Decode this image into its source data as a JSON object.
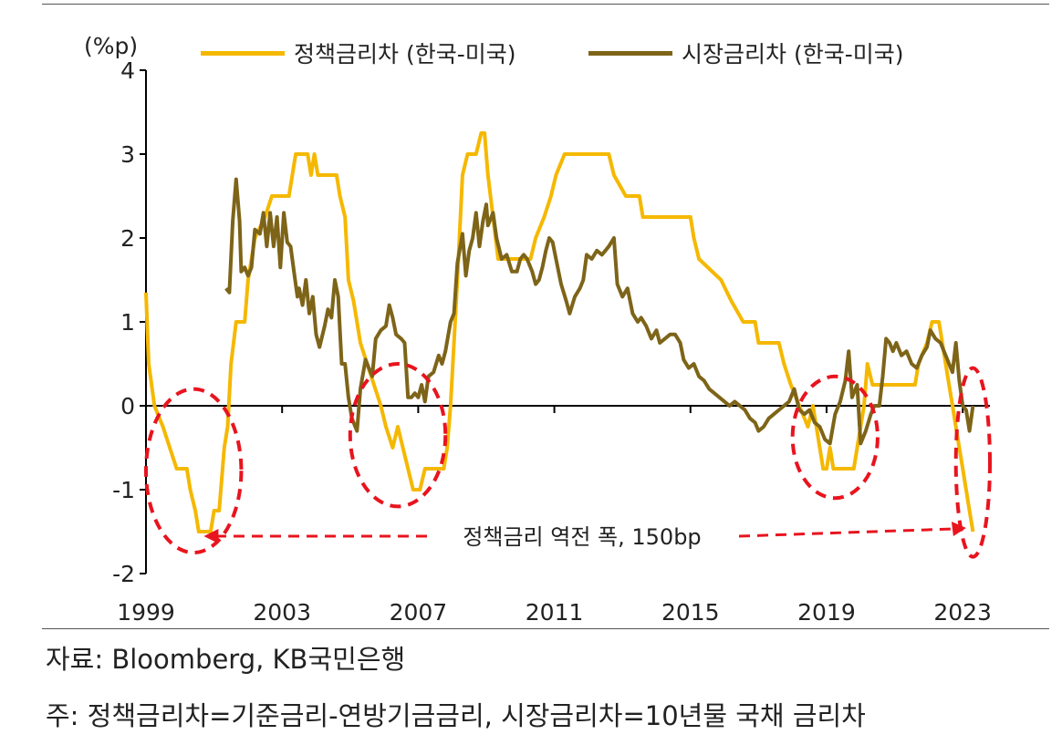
{
  "chart_data": {
    "type": "line",
    "unit_label": "(%p)",
    "colors": {
      "policy": "#f5b800",
      "market": "#7d6418",
      "annotation": "#e8141e"
    },
    "ylim": [
      -2,
      4
    ],
    "y_ticks": [
      "-2",
      "-1",
      "0",
      "1",
      "2",
      "3",
      "4"
    ],
    "xlim": [
      1999.0,
      2023.8
    ],
    "x_ticks": [
      "1999",
      "2003",
      "2007",
      "2011",
      "2015",
      "2019",
      "2023"
    ],
    "grid": false,
    "legend_position": "top",
    "series": [
      {
        "name": "정책금리차 (한국-미국)",
        "points": [
          [
            1999.0,
            1.35
          ],
          [
            1999.08,
            0.5
          ],
          [
            1999.25,
            0.0
          ],
          [
            1999.5,
            -0.25
          ],
          [
            1999.7,
            -0.5
          ],
          [
            1999.9,
            -0.75
          ],
          [
            2000.2,
            -0.75
          ],
          [
            2000.3,
            -1.0
          ],
          [
            2000.45,
            -1.25
          ],
          [
            2000.55,
            -1.5
          ],
          [
            2000.9,
            -1.5
          ],
          [
            2001.0,
            -1.25
          ],
          [
            2001.15,
            -1.25
          ],
          [
            2001.3,
            -0.5
          ],
          [
            2001.4,
            -0.25
          ],
          [
            2001.5,
            0.5
          ],
          [
            2001.65,
            1.0
          ],
          [
            2001.9,
            1.0
          ],
          [
            2002.0,
            1.5
          ],
          [
            2002.2,
            2.0
          ],
          [
            2002.5,
            2.25
          ],
          [
            2002.7,
            2.5
          ],
          [
            2003.2,
            2.5
          ],
          [
            2003.3,
            2.75
          ],
          [
            2003.4,
            3.0
          ],
          [
            2003.75,
            3.0
          ],
          [
            2003.85,
            2.75
          ],
          [
            2003.95,
            3.0
          ],
          [
            2004.05,
            2.75
          ],
          [
            2004.6,
            2.75
          ],
          [
            2004.7,
            2.5
          ],
          [
            2004.85,
            2.25
          ],
          [
            2004.95,
            1.5
          ],
          [
            2005.1,
            1.25
          ],
          [
            2005.3,
            0.75
          ],
          [
            2005.5,
            0.5
          ],
          [
            2005.7,
            0.25
          ],
          [
            2005.9,
            0.0
          ],
          [
            2006.05,
            -0.25
          ],
          [
            2006.25,
            -0.5
          ],
          [
            2006.4,
            -0.25
          ],
          [
            2006.55,
            -0.5
          ],
          [
            2006.7,
            -0.75
          ],
          [
            2006.85,
            -1.0
          ],
          [
            2007.05,
            -1.0
          ],
          [
            2007.2,
            -0.75
          ],
          [
            2007.75,
            -0.75
          ],
          [
            2007.85,
            -0.5
          ],
          [
            2007.95,
            0.0
          ],
          [
            2008.05,
            0.75
          ],
          [
            2008.15,
            1.5
          ],
          [
            2008.3,
            2.75
          ],
          [
            2008.45,
            3.0
          ],
          [
            2008.7,
            3.0
          ],
          [
            2008.85,
            3.25
          ],
          [
            2008.95,
            3.25
          ],
          [
            2009.05,
            2.75
          ],
          [
            2009.2,
            2.25
          ],
          [
            2009.35,
            1.75
          ],
          [
            2010.3,
            1.75
          ],
          [
            2010.45,
            2.0
          ],
          [
            2010.7,
            2.25
          ],
          [
            2010.9,
            2.5
          ],
          [
            2011.05,
            2.75
          ],
          [
            2011.3,
            3.0
          ],
          [
            2012.6,
            3.0
          ],
          [
            2012.75,
            2.75
          ],
          [
            2013.1,
            2.5
          ],
          [
            2013.5,
            2.5
          ],
          [
            2013.6,
            2.25
          ],
          [
            2015.0,
            2.25
          ],
          [
            2015.1,
            2.0
          ],
          [
            2015.25,
            1.75
          ],
          [
            2015.9,
            1.5
          ],
          [
            2016.2,
            1.25
          ],
          [
            2016.55,
            1.0
          ],
          [
            2016.9,
            1.0
          ],
          [
            2017.0,
            0.75
          ],
          [
            2017.6,
            0.75
          ],
          [
            2017.75,
            0.5
          ],
          [
            2017.95,
            0.25
          ],
          [
            2018.2,
            0.0
          ],
          [
            2018.45,
            -0.25
          ],
          [
            2018.6,
            0.0
          ],
          [
            2018.7,
            -0.25
          ],
          [
            2018.8,
            -0.5
          ],
          [
            2018.9,
            -0.75
          ],
          [
            2019.0,
            -0.75
          ],
          [
            2019.1,
            -0.5
          ],
          [
            2019.2,
            -0.75
          ],
          [
            2019.8,
            -0.75
          ],
          [
            2019.9,
            -0.5
          ],
          [
            2020.0,
            -0.25
          ],
          [
            2020.1,
            0.0
          ],
          [
            2020.2,
            0.5
          ],
          [
            2020.35,
            0.25
          ],
          [
            2021.6,
            0.25
          ],
          [
            2021.7,
            0.5
          ],
          [
            2021.95,
            0.75
          ],
          [
            2022.1,
            1.0
          ],
          [
            2022.3,
            1.0
          ],
          [
            2022.4,
            0.75
          ],
          [
            2022.5,
            0.5
          ],
          [
            2022.6,
            0.25
          ],
          [
            2022.7,
            0.0
          ],
          [
            2022.8,
            -0.25
          ],
          [
            2022.9,
            -0.5
          ],
          [
            2023.0,
            -0.75
          ],
          [
            2023.1,
            -1.0
          ],
          [
            2023.2,
            -1.25
          ],
          [
            2023.3,
            -1.5
          ]
        ]
      },
      {
        "name": "시장금리차 (한국-미국)",
        "points": [
          [
            2001.35,
            1.4
          ],
          [
            2001.45,
            1.35
          ],
          [
            2001.55,
            2.2
          ],
          [
            2001.65,
            2.7
          ],
          [
            2001.75,
            2.2
          ],
          [
            2001.8,
            1.6
          ],
          [
            2001.9,
            1.65
          ],
          [
            2002.0,
            1.55
          ],
          [
            2002.1,
            1.65
          ],
          [
            2002.2,
            2.1
          ],
          [
            2002.35,
            2.05
          ],
          [
            2002.45,
            2.3
          ],
          [
            2002.55,
            1.9
          ],
          [
            2002.65,
            2.3
          ],
          [
            2002.75,
            1.9
          ],
          [
            2002.85,
            2.25
          ],
          [
            2002.95,
            1.65
          ],
          [
            2003.05,
            2.3
          ],
          [
            2003.15,
            1.95
          ],
          [
            2003.25,
            1.9
          ],
          [
            2003.35,
            1.6
          ],
          [
            2003.45,
            1.3
          ],
          [
            2003.5,
            1.4
          ],
          [
            2003.6,
            1.2
          ],
          [
            2003.7,
            1.5
          ],
          [
            2003.8,
            1.1
          ],
          [
            2003.9,
            1.3
          ],
          [
            2004.0,
            0.85
          ],
          [
            2004.1,
            0.7
          ],
          [
            2004.25,
            0.95
          ],
          [
            2004.35,
            1.15
          ],
          [
            2004.45,
            1.05
          ],
          [
            2004.55,
            1.5
          ],
          [
            2004.65,
            1.3
          ],
          [
            2004.75,
            0.5
          ],
          [
            2004.85,
            0.5
          ],
          [
            2004.95,
            0.1
          ],
          [
            2005.05,
            -0.15
          ],
          [
            2005.2,
            -0.3
          ],
          [
            2005.3,
            0.2
          ],
          [
            2005.45,
            0.55
          ],
          [
            2005.55,
            0.45
          ],
          [
            2005.65,
            0.35
          ],
          [
            2005.75,
            0.8
          ],
          [
            2005.9,
            0.9
          ],
          [
            2006.05,
            0.95
          ],
          [
            2006.15,
            1.2
          ],
          [
            2006.25,
            1.05
          ],
          [
            2006.35,
            0.85
          ],
          [
            2006.5,
            0.8
          ],
          [
            2006.6,
            0.75
          ],
          [
            2006.7,
            0.1
          ],
          [
            2006.8,
            0.1
          ],
          [
            2006.9,
            0.15
          ],
          [
            2007.0,
            0.1
          ],
          [
            2007.1,
            0.25
          ],
          [
            2007.2,
            0.05
          ],
          [
            2007.3,
            0.35
          ],
          [
            2007.45,
            0.4
          ],
          [
            2007.6,
            0.6
          ],
          [
            2007.7,
            0.5
          ],
          [
            2007.8,
            0.65
          ],
          [
            2007.95,
            1.0
          ],
          [
            2008.05,
            1.1
          ],
          [
            2008.15,
            1.7
          ],
          [
            2008.3,
            2.05
          ],
          [
            2008.4,
            1.55
          ],
          [
            2008.5,
            1.85
          ],
          [
            2008.6,
            2.0
          ],
          [
            2008.7,
            2.3
          ],
          [
            2008.8,
            1.9
          ],
          [
            2008.9,
            2.2
          ],
          [
            2009.0,
            2.4
          ],
          [
            2009.05,
            2.15
          ],
          [
            2009.2,
            2.3
          ],
          [
            2009.3,
            2.0
          ],
          [
            2009.45,
            1.75
          ],
          [
            2009.6,
            1.8
          ],
          [
            2009.75,
            1.6
          ],
          [
            2009.9,
            1.6
          ],
          [
            2010.0,
            1.75
          ],
          [
            2010.1,
            1.8
          ],
          [
            2010.2,
            1.75
          ],
          [
            2010.35,
            1.6
          ],
          [
            2010.45,
            1.45
          ],
          [
            2010.55,
            1.5
          ],
          [
            2010.65,
            1.65
          ],
          [
            2010.75,
            1.85
          ],
          [
            2010.85,
            2.0
          ],
          [
            2010.95,
            1.95
          ],
          [
            2011.05,
            1.75
          ],
          [
            2011.2,
            1.45
          ],
          [
            2011.35,
            1.25
          ],
          [
            2011.45,
            1.1
          ],
          [
            2011.6,
            1.3
          ],
          [
            2011.75,
            1.4
          ],
          [
            2011.85,
            1.5
          ],
          [
            2011.95,
            1.8
          ],
          [
            2012.1,
            1.75
          ],
          [
            2012.25,
            1.85
          ],
          [
            2012.4,
            1.8
          ],
          [
            2012.6,
            1.9
          ],
          [
            2012.75,
            2.0
          ],
          [
            2012.85,
            1.45
          ],
          [
            2013.0,
            1.3
          ],
          [
            2013.15,
            1.4
          ],
          [
            2013.3,
            1.1
          ],
          [
            2013.45,
            1.0
          ],
          [
            2013.55,
            1.05
          ],
          [
            2013.7,
            0.95
          ],
          [
            2013.85,
            0.8
          ],
          [
            2014.0,
            0.9
          ],
          [
            2014.1,
            0.75
          ],
          [
            2014.25,
            0.8
          ],
          [
            2014.4,
            0.85
          ],
          [
            2014.55,
            0.85
          ],
          [
            2014.7,
            0.75
          ],
          [
            2014.8,
            0.55
          ],
          [
            2014.95,
            0.45
          ],
          [
            2015.1,
            0.5
          ],
          [
            2015.25,
            0.35
          ],
          [
            2015.4,
            0.3
          ],
          [
            2015.55,
            0.2
          ],
          [
            2015.7,
            0.15
          ],
          [
            2015.85,
            0.1
          ],
          [
            2016.0,
            0.05
          ],
          [
            2016.15,
            0.0
          ],
          [
            2016.3,
            0.05
          ],
          [
            2016.45,
            0.0
          ],
          [
            2016.6,
            -0.05
          ],
          [
            2016.75,
            -0.15
          ],
          [
            2016.9,
            -0.2
          ],
          [
            2017.0,
            -0.3
          ],
          [
            2017.15,
            -0.25
          ],
          [
            2017.3,
            -0.15
          ],
          [
            2017.45,
            -0.1
          ],
          [
            2017.6,
            -0.05
          ],
          [
            2017.75,
            0.0
          ],
          [
            2017.9,
            0.05
          ],
          [
            2018.05,
            0.2
          ],
          [
            2018.2,
            -0.05
          ],
          [
            2018.35,
            -0.1
          ],
          [
            2018.5,
            -0.05
          ],
          [
            2018.65,
            -0.2
          ],
          [
            2018.8,
            -0.25
          ],
          [
            2018.95,
            -0.4
          ],
          [
            2019.1,
            -0.45
          ],
          [
            2019.25,
            -0.1
          ],
          [
            2019.4,
            0.05
          ],
          [
            2019.55,
            0.3
          ],
          [
            2019.65,
            0.65
          ],
          [
            2019.75,
            0.1
          ],
          [
            2019.9,
            0.25
          ],
          [
            2020.0,
            -0.45
          ],
          [
            2020.15,
            -0.3
          ],
          [
            2020.3,
            -0.1
          ],
          [
            2020.4,
            0.0
          ],
          [
            2020.55,
            0.0
          ],
          [
            2020.65,
            0.35
          ],
          [
            2020.75,
            0.8
          ],
          [
            2020.85,
            0.75
          ],
          [
            2020.95,
            0.65
          ],
          [
            2021.05,
            0.75
          ],
          [
            2021.2,
            0.6
          ],
          [
            2021.35,
            0.65
          ],
          [
            2021.5,
            0.5
          ],
          [
            2021.65,
            0.45
          ],
          [
            2021.8,
            0.6
          ],
          [
            2021.95,
            0.7
          ],
          [
            2022.05,
            0.9
          ],
          [
            2022.2,
            0.8
          ],
          [
            2022.35,
            0.75
          ],
          [
            2022.5,
            0.6
          ],
          [
            2022.6,
            0.5
          ],
          [
            2022.7,
            0.4
          ],
          [
            2022.8,
            0.75
          ],
          [
            2022.9,
            0.3
          ],
          [
            2023.0,
            0.0
          ],
          [
            2023.1,
            -0.05
          ],
          [
            2023.2,
            -0.3
          ],
          [
            2023.3,
            0.0
          ]
        ]
      }
    ],
    "annotation": "정책금리 역전 폭, 150bp",
    "highlight_periods": [
      [
        1999.0,
        2001.8
      ],
      [
        2005.0,
        2007.8
      ],
      [
        2018.0,
        2020.5
      ],
      [
        2022.8,
        2023.8
      ]
    ]
  },
  "source_text": "자료: Bloomberg, KB국민은행",
  "note_text": "주: 정책금리차=기준금리-연방기금금리, 시장금리차=10년물 국채 금리차"
}
